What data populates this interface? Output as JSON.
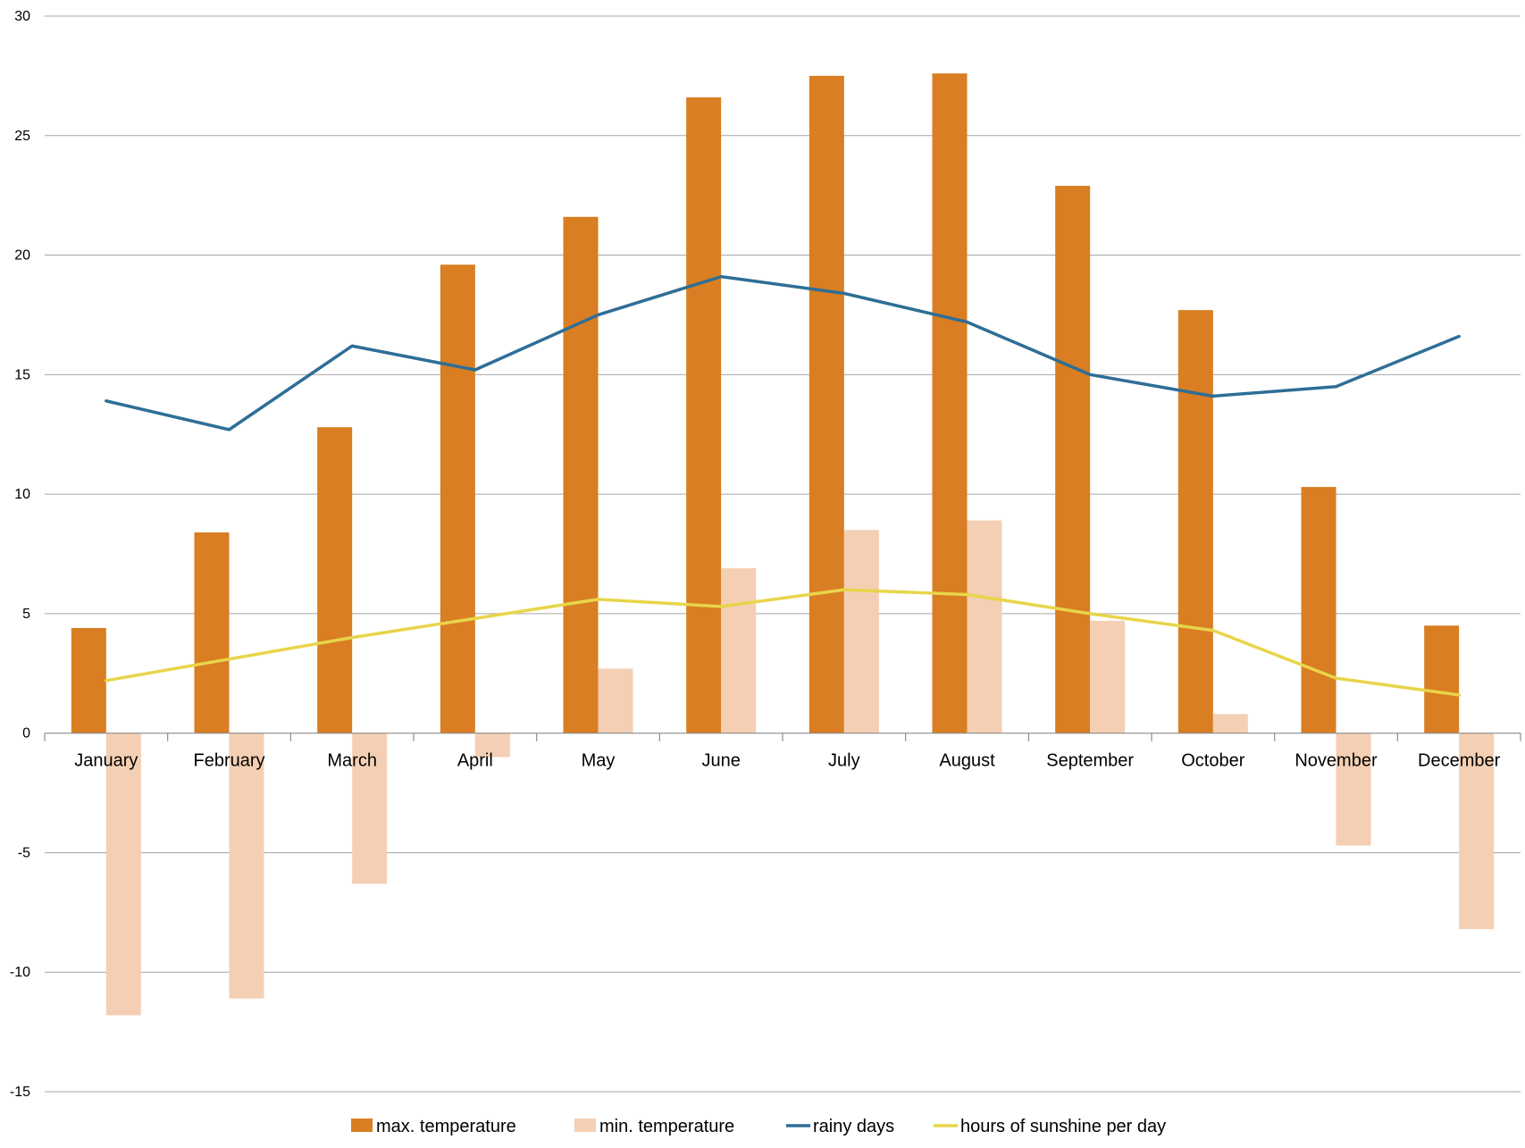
{
  "chart_data": {
    "type": "bar",
    "title": "",
    "xlabel": "",
    "ylabel": "",
    "ylim": [
      -15,
      30
    ],
    "y_ticks": [
      30,
      25,
      20,
      15,
      10,
      5,
      0,
      -5,
      -10,
      -15
    ],
    "grid": true,
    "legend_position": "bottom",
    "categories": [
      "January",
      "February",
      "March",
      "April",
      "May",
      "June",
      "July",
      "August",
      "September",
      "October",
      "November",
      "December"
    ],
    "series": [
      {
        "name": "max.  temperature",
        "kind": "bar",
        "color": "#d97e22",
        "values": [
          4.4,
          8.4,
          12.8,
          19.6,
          21.6,
          26.6,
          27.5,
          27.6,
          22.9,
          17.7,
          10.3,
          4.5
        ]
      },
      {
        "name": "min. temperature",
        "kind": "bar",
        "color": "#f4cfb3",
        "values": [
          -11.8,
          -11.1,
          -6.3,
          -1.0,
          2.7,
          6.9,
          8.5,
          8.9,
          4.7,
          0.8,
          -4.7,
          -8.2
        ]
      },
      {
        "name": "rainy days",
        "kind": "line",
        "color": "#2e6e96",
        "values": [
          13.9,
          12.7,
          16.2,
          15.2,
          17.5,
          19.1,
          18.4,
          17.2,
          15.0,
          14.1,
          14.5,
          16.6
        ]
      },
      {
        "name": "hours of sunshine per day",
        "kind": "line",
        "color": "#e8d54a",
        "values": [
          2.2,
          3.1,
          4.0,
          4.8,
          5.6,
          5.3,
          6.0,
          5.8,
          5.0,
          4.3,
          2.3,
          1.6
        ]
      }
    ]
  }
}
